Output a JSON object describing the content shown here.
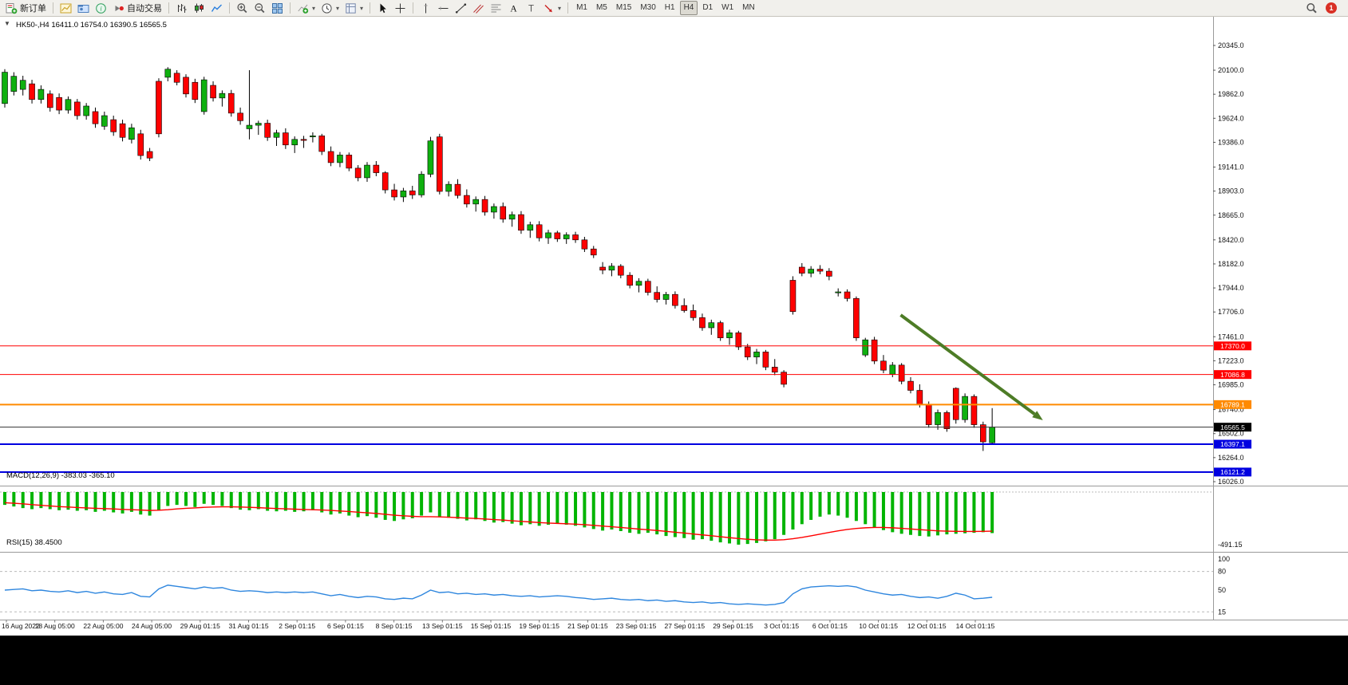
{
  "toolbar": {
    "buttons": [
      {
        "type": "button",
        "name": "new-order",
        "icon": "new-order",
        "label": "新订单"
      },
      {
        "type": "separator"
      },
      {
        "type": "button",
        "name": "new-chart",
        "icon": "new-chart"
      },
      {
        "type": "button",
        "name": "profiles",
        "icon": "profiles"
      },
      {
        "type": "button",
        "name": "market-watch",
        "icon": "market-watch"
      },
      {
        "type": "button",
        "name": "autotrading",
        "icon": "autotrading",
        "label": "自动交易"
      },
      {
        "type": "separator"
      },
      {
        "type": "button",
        "name": "bar-chart",
        "icon": "bars"
      },
      {
        "type": "button",
        "name": "candlestick-chart",
        "icon": "candles"
      },
      {
        "type": "button",
        "name": "line-chart",
        "icon": "linechart"
      },
      {
        "type": "separator"
      },
      {
        "type": "button",
        "name": "zoom-in",
        "icon": "zoom-in"
      },
      {
        "type": "button",
        "name": "zoom-out",
        "icon": "zoom-out"
      },
      {
        "type": "button",
        "name": "tile-windows",
        "icon": "tile"
      },
      {
        "type": "separator"
      },
      {
        "type": "button",
        "name": "indicators",
        "icon": "indicators",
        "dropdown": true
      },
      {
        "type": "button",
        "name": "periods",
        "icon": "clock",
        "dropdown": true
      },
      {
        "type": "button",
        "name": "templates",
        "icon": "templates",
        "dropdown": true
      },
      {
        "type": "separator"
      },
      {
        "type": "button",
        "name": "cursor",
        "icon": "cursor"
      },
      {
        "type": "button",
        "name": "crosshair",
        "icon": "crosshair"
      },
      {
        "type": "separator"
      },
      {
        "type": "button",
        "name": "vertical-line",
        "icon": "vline"
      },
      {
        "type": "button",
        "name": "horizontal-line",
        "icon": "hline"
      },
      {
        "type": "button",
        "name": "trendline",
        "icon": "tline"
      },
      {
        "type": "button",
        "name": "equidistant-channel",
        "icon": "channel"
      },
      {
        "type": "button",
        "name": "fibonacci",
        "icon": "fibo"
      },
      {
        "type": "button",
        "name": "text",
        "icon": "text"
      },
      {
        "type": "button",
        "name": "text-label",
        "icon": "label"
      },
      {
        "type": "button",
        "name": "arrow-objects",
        "icon": "shapes",
        "dropdown": true
      },
      {
        "type": "separator"
      }
    ],
    "timeframes": [
      "M1",
      "M5",
      "M15",
      "M30",
      "H1",
      "H4",
      "D1",
      "W1",
      "MN"
    ],
    "active_timeframe": "H4",
    "notification_count": "1"
  },
  "chart": {
    "title": "HK50-,H4 16411.0 16754.0 16390.5 16565.5",
    "symbol": "HK50-",
    "timeframe": "H4",
    "ohlc": {
      "open": "16411.0",
      "high": "16754.0",
      "low": "16390.5",
      "close": "16565.5"
    },
    "oneclick_arrow": "▼",
    "levels": [
      {
        "price": 17370.0,
        "label": "17370.0",
        "color": "#ff0000",
        "width": 1
      },
      {
        "price": 17086.8,
        "label": "17086.8",
        "color": "#ff0000",
        "width": 1
      },
      {
        "price": 16789.1,
        "label": "16789.1",
        "color": "#ff8a00",
        "width": 2
      },
      {
        "price": 16565.5,
        "label": "16565.5",
        "color": "#000000",
        "width": 1
      },
      {
        "price": 16397.1,
        "label": "16397.1",
        "color": "#0000e0",
        "width": 2
      },
      {
        "price": 16121.2,
        "label": "16121.2",
        "color": "#0000e0",
        "width": 2
      }
    ],
    "arrow_object": {
      "start": {
        "bar": 98.9,
        "price": 17676
      },
      "end": {
        "bar": 114.6,
        "price": 16634
      },
      "color": "#4d7c26"
    }
  },
  "indicators": {
    "macd": {
      "text": "MACD(12,26,9) -383.03 -365.10",
      "label": "MACD(12,26,9)",
      "value_main": "-383.03",
      "value_signal": "-365.10",
      "axis_label": "-491.15"
    },
    "rsi": {
      "text": "RSI(15) 38.4500",
      "label": "RSI(15)",
      "value": "38.4500",
      "level_labels": [
        "100",
        "80",
        "50",
        "15"
      ],
      "level_values": [
        100,
        80,
        50,
        15
      ],
      "dashed_levels": [
        80,
        15
      ]
    }
  },
  "chart_data": {
    "type": "candlestick",
    "title": "HK50-,H4",
    "symbol": "HK50-",
    "timeframe": "H4",
    "ylim": [
      16026,
      20345
    ],
    "y_axis_ticks": [
      20345.0,
      20100.0,
      19862.0,
      19624.0,
      19386.0,
      19141.0,
      18903.0,
      18665.0,
      18420.0,
      18182.0,
      17944.0,
      17706.0,
      17461.0,
      17223.0,
      16985.0,
      16740.0,
      16502.0,
      16264.0,
      16026.0
    ],
    "x_labels": [
      "16 Aug 2022",
      "18 Aug 05:00",
      "22 Aug 05:00",
      "24 Aug 05:00",
      "29 Aug 01:15",
      "31 Aug 01:15",
      "2 Sep 01:15",
      "6 Sep 01:15",
      "8 Sep 01:15",
      "13 Sep 01:15",
      "15 Sep 01:15",
      "19 Sep 01:15",
      "21 Sep 01:15",
      "23 Sep 01:15",
      "27 Sep 01:15",
      "29 Sep 01:15",
      "3 Oct 01:15",
      "6 Oct 01:15",
      "10 Oct 01:15",
      "12 Oct 01:15",
      "14 Oct 01:15"
    ],
    "colors": {
      "bull": "#0fb00f",
      "bear": "#ff0000",
      "wick": "#000000",
      "macd_hist": "#00b400",
      "macd_signal": "#ff0000",
      "rsi_line": "#2e86de",
      "arrow": "#4d7c26"
    },
    "candles": [
      [
        19770,
        20110,
        19730,
        20080
      ],
      [
        19890,
        20080,
        19850,
        20040
      ],
      [
        19910,
        20045,
        19850,
        20000
      ],
      [
        19965,
        20005,
        19770,
        19810
      ],
      [
        19810,
        19950,
        19770,
        19910
      ],
      [
        19865,
        19900,
        19690,
        19730
      ],
      [
        19830,
        19870,
        19665,
        19705
      ],
      [
        19705,
        19840,
        19670,
        19810
      ],
      [
        19785,
        19815,
        19610,
        19650
      ],
      [
        19650,
        19775,
        19610,
        19745
      ],
      [
        19690,
        19730,
        19530,
        19570
      ],
      [
        19545,
        19690,
        19510,
        19650
      ],
      [
        19610,
        19650,
        19450,
        19490
      ],
      [
        19570,
        19610,
        19395,
        19435
      ],
      [
        19415,
        19570,
        19375,
        19530
      ],
      [
        19470,
        19510,
        19215,
        19255
      ],
      [
        19295,
        19330,
        19200,
        19230
      ],
      [
        19990,
        20020,
        19435,
        19470
      ],
      [
        20030,
        20130,
        19990,
        20110
      ],
      [
        20070,
        20100,
        19950,
        19980
      ],
      [
        20030,
        20060,
        19830,
        19865
      ],
      [
        19980,
        20015,
        19775,
        19810
      ],
      [
        19690,
        20035,
        19660,
        20005
      ],
      [
        19950,
        19990,
        19790,
        19825
      ],
      [
        19825,
        19900,
        19740,
        19870
      ],
      [
        19870,
        19905,
        19640,
        19675
      ],
      [
        19675,
        19730,
        19560,
        19600
      ],
      [
        19520,
        20100,
        19415,
        19555
      ],
      [
        19555,
        19600,
        19460,
        19575
      ],
      [
        19575,
        19610,
        19400,
        19435
      ],
      [
        19435,
        19510,
        19350,
        19480
      ],
      [
        19480,
        19525,
        19320,
        19360
      ],
      [
        19360,
        19445,
        19280,
        19415
      ],
      [
        19415,
        19450,
        19330,
        19405
      ],
      [
        19440,
        19485,
        19385,
        19450
      ],
      [
        19450,
        19470,
        19260,
        19295
      ],
      [
        19295,
        19345,
        19150,
        19185
      ],
      [
        19185,
        19290,
        19140,
        19260
      ],
      [
        19260,
        19285,
        19100,
        19130
      ],
      [
        19130,
        19160,
        19000,
        19035
      ],
      [
        19035,
        19190,
        18995,
        19160
      ],
      [
        19160,
        19200,
        19050,
        19085
      ],
      [
        19085,
        19100,
        18880,
        18915
      ],
      [
        18915,
        18975,
        18810,
        18845
      ],
      [
        18845,
        18935,
        18795,
        18905
      ],
      [
        18905,
        18955,
        18825,
        18865
      ],
      [
        18865,
        19100,
        18840,
        19070
      ],
      [
        19070,
        19440,
        19040,
        19400
      ],
      [
        19440,
        19470,
        18870,
        18900
      ],
      [
        18900,
        19000,
        18850,
        18970
      ],
      [
        18970,
        19020,
        18830,
        18860
      ],
      [
        18860,
        18920,
        18740,
        18775
      ],
      [
        18775,
        18850,
        18700,
        18820
      ],
      [
        18820,
        18855,
        18660,
        18695
      ],
      [
        18695,
        18780,
        18630,
        18750
      ],
      [
        18750,
        18790,
        18590,
        18625
      ],
      [
        18625,
        18700,
        18550,
        18670
      ],
      [
        18670,
        18705,
        18480,
        18515
      ],
      [
        18515,
        18600,
        18440,
        18570
      ],
      [
        18570,
        18605,
        18405,
        18440
      ],
      [
        18440,
        18520,
        18380,
        18490
      ],
      [
        18490,
        18510,
        18400,
        18430
      ],
      [
        18430,
        18495,
        18380,
        18470
      ],
      [
        18470,
        18500,
        18390,
        18420
      ],
      [
        18420,
        18450,
        18300,
        18330
      ],
      [
        18330,
        18360,
        18240,
        18270
      ],
      [
        18150,
        18200,
        18080,
        18120
      ],
      [
        18120,
        18190,
        18060,
        18160
      ],
      [
        18160,
        18180,
        18040,
        18070
      ],
      [
        18070,
        18100,
        17940,
        17970
      ],
      [
        17970,
        18040,
        17900,
        18010
      ],
      [
        18010,
        18035,
        17870,
        17900
      ],
      [
        17900,
        17960,
        17800,
        17830
      ],
      [
        17830,
        17905,
        17780,
        17880
      ],
      [
        17880,
        17910,
        17740,
        17770
      ],
      [
        17770,
        17840,
        17700,
        17720
      ],
      [
        17720,
        17780,
        17620,
        17650
      ],
      [
        17650,
        17690,
        17520,
        17550
      ],
      [
        17550,
        17630,
        17480,
        17600
      ],
      [
        17600,
        17620,
        17420,
        17450
      ],
      [
        17450,
        17530,
        17380,
        17500
      ],
      [
        17500,
        17520,
        17330,
        17360
      ],
      [
        17360,
        17390,
        17230,
        17260
      ],
      [
        17260,
        17340,
        17190,
        17310
      ],
      [
        17310,
        17330,
        17130,
        17160
      ],
      [
        17160,
        17240,
        17080,
        17110
      ],
      [
        17110,
        17130,
        16960,
        16990
      ],
      [
        18020,
        18060,
        17680,
        17710
      ],
      [
        18150,
        18190,
        18060,
        18090
      ],
      [
        18090,
        18160,
        18050,
        18130
      ],
      [
        18130,
        18170,
        18080,
        18110
      ],
      [
        18110,
        18140,
        18020,
        18060
      ],
      [
        17900,
        17940,
        17860,
        17905
      ],
      [
        17905,
        17930,
        17810,
        17840
      ],
      [
        17840,
        17860,
        17420,
        17450
      ],
      [
        17280,
        17450,
        17260,
        17430
      ],
      [
        17430,
        17460,
        17190,
        17220
      ],
      [
        17220,
        17280,
        17100,
        17130
      ],
      [
        17090,
        17210,
        17060,
        17180
      ],
      [
        17180,
        17200,
        16990,
        17020
      ],
      [
        17020,
        17060,
        16900,
        16930
      ],
      [
        16930,
        16990,
        16760,
        16790
      ],
      [
        16790,
        16820,
        16560,
        16590
      ],
      [
        16590,
        16740,
        16540,
        16710
      ],
      [
        16710,
        16730,
        16520,
        16550
      ],
      [
        16950,
        16960,
        16600,
        16640
      ],
      [
        16640,
        16900,
        16610,
        16870
      ],
      [
        16870,
        16890,
        16560,
        16590
      ],
      [
        16590,
        16620,
        16330,
        16420
      ],
      [
        16411,
        16754,
        16390.5,
        16565.5
      ]
    ],
    "macd_histogram": [
      -120,
      -135,
      -150,
      -160,
      -150,
      -160,
      -170,
      -165,
      -175,
      -170,
      -185,
      -175,
      -190,
      -200,
      -185,
      -210,
      -220,
      -170,
      -130,
      -120,
      -130,
      -140,
      -110,
      -120,
      -130,
      -150,
      -165,
      -170,
      -160,
      -175,
      -180,
      -175,
      -185,
      -180,
      -170,
      -190,
      -210,
      -200,
      -220,
      -235,
      -225,
      -240,
      -260,
      -270,
      -255,
      -245,
      -220,
      -190,
      -230,
      -240,
      -250,
      -265,
      -255,
      -270,
      -285,
      -280,
      -295,
      -310,
      -300,
      -315,
      -305,
      -295,
      -305,
      -315,
      -330,
      -345,
      -360,
      -350,
      -365,
      -380,
      -390,
      -380,
      -395,
      -410,
      -420,
      -430,
      -445,
      -440,
      -455,
      -470,
      -480,
      -491,
      -485,
      -475,
      -460,
      -440,
      -400,
      -350,
      -300,
      -260,
      -230,
      -210,
      -220,
      -240,
      -270,
      -300,
      -330,
      -355,
      -375,
      -390,
      -400,
      -410,
      -415,
      -405,
      -395,
      -390,
      -385,
      -380,
      -375,
      -383
    ],
    "macd_signal": [
      -100,
      -105,
      -110,
      -118,
      -124,
      -130,
      -136,
      -140,
      -145,
      -148,
      -152,
      -155,
      -158,
      -162,
      -165,
      -168,
      -172,
      -170,
      -165,
      -158,
      -152,
      -148,
      -143,
      -140,
      -138,
      -138,
      -140,
      -143,
      -146,
      -150,
      -154,
      -157,
      -160,
      -163,
      -165,
      -168,
      -172,
      -177,
      -182,
      -188,
      -194,
      -200,
      -208,
      -216,
      -222,
      -227,
      -230,
      -230,
      -232,
      -235,
      -239,
      -243,
      -247,
      -252,
      -257,
      -262,
      -268,
      -274,
      -279,
      -285,
      -290,
      -293,
      -296,
      -300,
      -305,
      -311,
      -318,
      -324,
      -331,
      -338,
      -346,
      -352,
      -359,
      -367,
      -375,
      -383,
      -392,
      -400,
      -408,
      -417,
      -426,
      -434,
      -441,
      -446,
      -449,
      -449,
      -445,
      -436,
      -424,
      -409,
      -393,
      -377,
      -362,
      -349,
      -340,
      -334,
      -331,
      -331,
      -334,
      -339,
      -345,
      -351,
      -357,
      -362,
      -365,
      -367,
      -368,
      -368,
      -367,
      -365
    ],
    "macd_range": [
      0,
      -491.15
    ],
    "rsi_values": [
      50,
      51,
      52,
      49,
      50,
      48,
      47,
      49,
      46,
      48,
      45,
      47,
      44,
      43,
      46,
      40,
      39,
      52,
      58,
      56,
      54,
      52,
      55,
      53,
      54,
      50,
      48,
      49,
      48,
      46,
      47,
      46,
      47,
      46,
      47,
      44,
      41,
      43,
      40,
      38,
      40,
      39,
      36,
      35,
      37,
      36,
      42,
      50,
      46,
      47,
      44,
      45,
      43,
      44,
      42,
      43,
      41,
      40,
      41,
      39,
      40,
      41,
      40,
      38,
      37,
      35,
      36,
      37,
      35,
      34,
      35,
      33,
      34,
      32,
      33,
      31,
      30,
      31,
      29,
      30,
      28,
      27,
      28,
      27,
      26,
      27,
      30,
      44,
      52,
      55,
      56,
      57,
      56,
      57,
      55,
      50,
      47,
      44,
      42,
      43,
      40,
      38,
      39,
      37,
      40,
      45,
      42,
      36,
      37,
      38.45
    ]
  }
}
